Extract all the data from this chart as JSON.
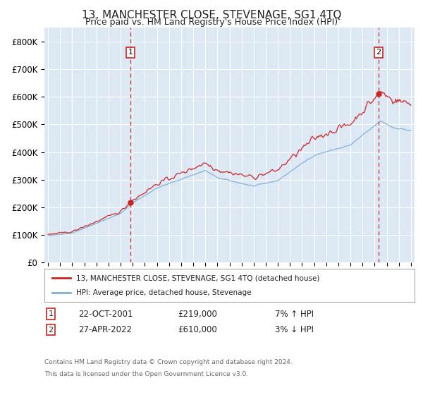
{
  "title": "13, MANCHESTER CLOSE, STEVENAGE, SG1 4TQ",
  "subtitle": "Price paid vs. HM Land Registry's House Price Index (HPI)",
  "ylabel_ticks": [
    "£0",
    "£100K",
    "£200K",
    "£300K",
    "£400K",
    "£500K",
    "£600K",
    "£700K",
    "£800K"
  ],
  "ytick_values": [
    0,
    100000,
    200000,
    300000,
    400000,
    500000,
    600000,
    700000,
    800000
  ],
  "ylim": [
    0,
    850000
  ],
  "xlim_start": 1994.7,
  "xlim_end": 2025.3,
  "background_color": "#dce9f5",
  "fig_bg_color": "#ffffff",
  "grid_color": "#ffffff",
  "red_line_color": "#cc2222",
  "blue_line_color": "#7dadd4",
  "sale1_year": 2001.81,
  "sale1_price": 219000,
  "sale2_year": 2022.32,
  "sale2_price": 610000,
  "legend_line1": "13, MANCHESTER CLOSE, STEVENAGE, SG1 4TQ (detached house)",
  "legend_line2": "HPI: Average price, detached house, Stevenage",
  "annotation1_date": "22-OCT-2001",
  "annotation1_price": "£219,000",
  "annotation1_hpi": "7% ↑ HPI",
  "annotation2_date": "27-APR-2022",
  "annotation2_price": "£610,000",
  "annotation2_hpi": "3% ↓ HPI",
  "footer1": "Contains HM Land Registry data © Crown copyright and database right 2024.",
  "footer2": "This data is licensed under the Open Government Licence v3.0."
}
